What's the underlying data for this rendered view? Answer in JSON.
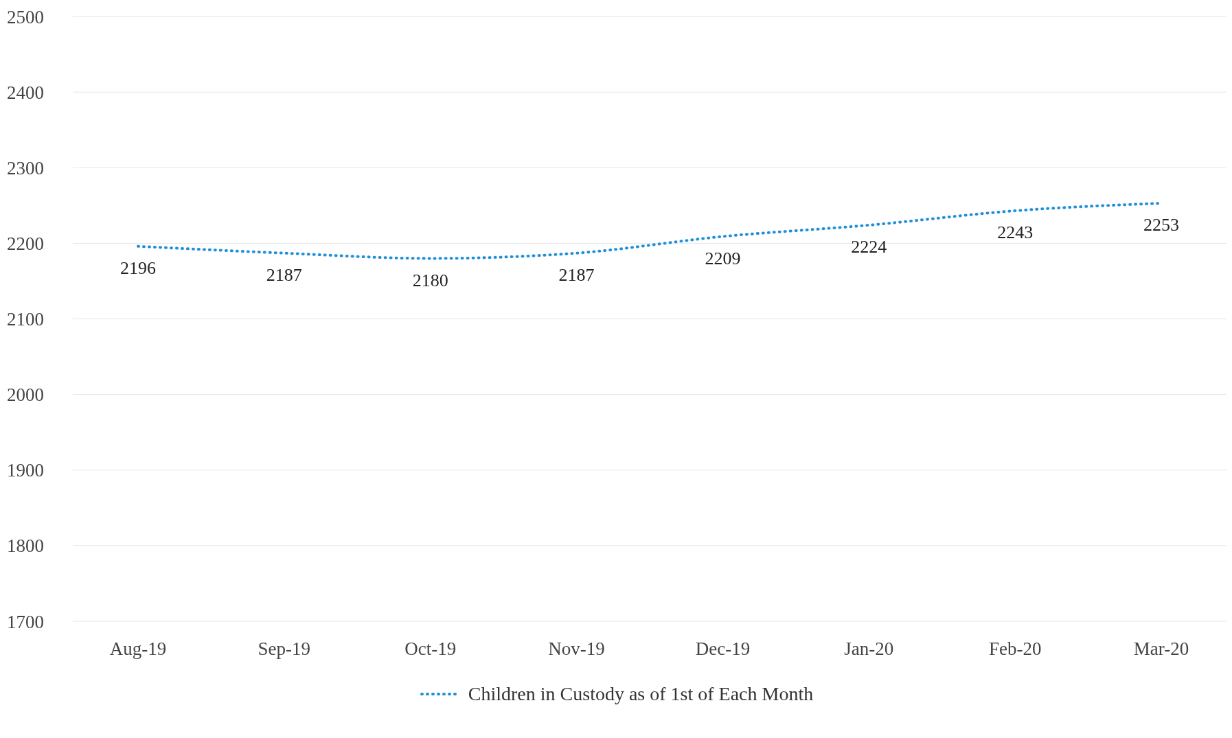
{
  "chart_data": {
    "type": "line",
    "categories": [
      "Aug-19",
      "Sep-19",
      "Oct-19",
      "Nov-19",
      "Dec-19",
      "Jan-20",
      "Feb-20",
      "Mar-20"
    ],
    "series": [
      {
        "name": "Children in Custody as of 1st of Each Month",
        "color": "#1f8fd9",
        "values": [
          2196,
          2187,
          2180,
          2187,
          2209,
          2224,
          2243,
          2253
        ]
      }
    ],
    "ylim": [
      1700,
      2500
    ],
    "yticks": [
      1700,
      1800,
      1900,
      2000,
      2100,
      2200,
      2300,
      2400,
      2500
    ],
    "grid": "y",
    "legend": "bottom",
    "marker": "none",
    "line_style": "dotted",
    "data_labels": true
  }
}
